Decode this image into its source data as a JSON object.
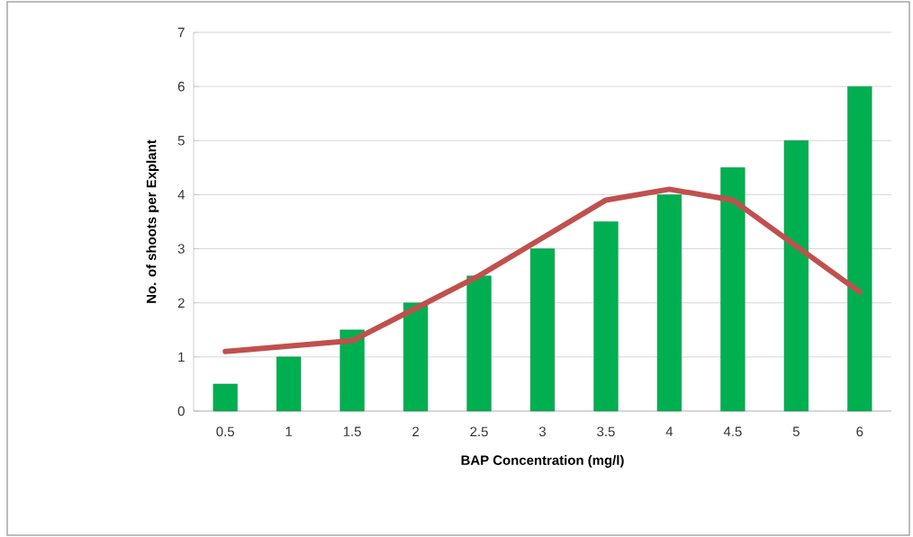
{
  "chart_data": {
    "type": "bar",
    "xlabel": "BAP Concentration (mg/l)",
    "ylabel": "No. of shoots per Explant",
    "categories": [
      "0.5",
      "1",
      "1.5",
      "2",
      "2.5",
      "3",
      "3.5",
      "4",
      "4.5",
      "5",
      "6"
    ],
    "series": [
      {
        "color": "#00b050",
        "values": [
          0.5,
          1,
          1.5,
          2,
          2.5,
          3,
          3.5,
          4,
          4.5,
          5,
          6
        ]
      },
      {
        "type": "line",
        "color": "#c0504d",
        "values": [
          1.1,
          1.2,
          1.3,
          1.9,
          2.5,
          3.2,
          3.9,
          4.1,
          3.9,
          3.05,
          2.2
        ]
      }
    ],
    "ylim": [
      0,
      7
    ],
    "yticks": [
      0,
      1,
      2,
      3,
      4,
      5,
      6,
      7
    ],
    "grid": "y",
    "marker": "none",
    "line_style": "solid"
  }
}
